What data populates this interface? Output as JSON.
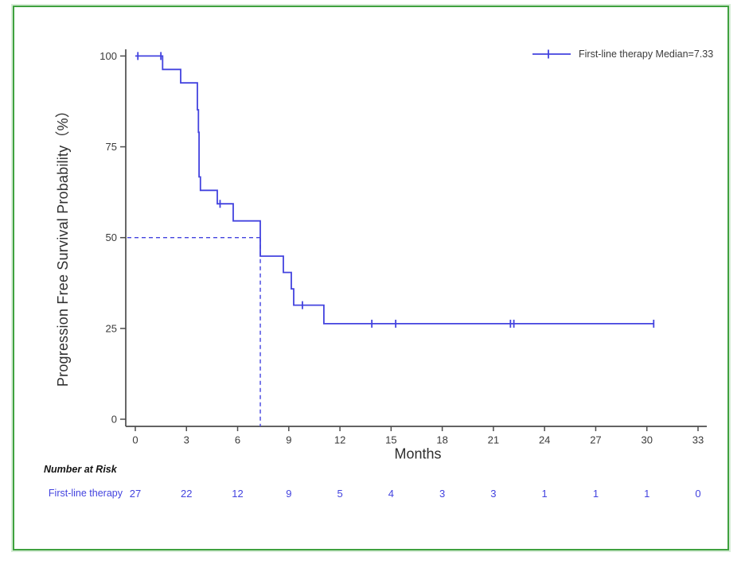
{
  "colors": {
    "curve_blue": "#4343DF",
    "axis_gray": "#4d4d4d",
    "text_dark": "#2f2f2f",
    "frame_green": "#3FA13F",
    "background": "#ffffff"
  },
  "chart_data": {
    "type": "line",
    "subtype": "kaplan-meier-step-curve",
    "title": "",
    "xlabel": "Months",
    "ylabel": "Progression Free Survival Probability（%）",
    "xlim": [
      0,
      33
    ],
    "ylim": [
      0,
      100
    ],
    "x_ticks": [
      0,
      3,
      6,
      9,
      12,
      15,
      18,
      21,
      24,
      27,
      30,
      33
    ],
    "y_ticks": [
      0,
      25,
      50,
      75,
      100
    ],
    "grid": false,
    "legend": {
      "position": "top-right",
      "label": "First-line therapy Median=7.33",
      "marker": "line-with-plus-censor-tick"
    },
    "median_reference": {
      "x": 7.33,
      "y": 50,
      "style": "dashed"
    },
    "series": [
      {
        "name": "First-line therapy",
        "color": "#4343DF",
        "steps_month_percent": [
          [
            0,
            100
          ],
          [
            1.6,
            96.3
          ],
          [
            2.66,
            92.6
          ],
          [
            3.64,
            85.2
          ],
          [
            3.7,
            79.0
          ],
          [
            3.74,
            66.7
          ],
          [
            3.82,
            63.0
          ],
          [
            4.81,
            59.3
          ],
          [
            5.74,
            54.6
          ],
          [
            7.33,
            44.9
          ],
          [
            8.68,
            40.4
          ],
          [
            9.15,
            35.9
          ],
          [
            9.29,
            31.4
          ],
          [
            11.06,
            26.3
          ],
          [
            30.4,
            26.3
          ]
        ],
        "censor_marks_month_percent": [
          [
            0.15,
            100
          ],
          [
            1.5,
            100
          ],
          [
            4.97,
            59.3
          ],
          [
            9.8,
            31.4
          ],
          [
            13.87,
            26.3
          ],
          [
            15.27,
            26.3
          ],
          [
            22.0,
            26.3
          ],
          [
            22.2,
            26.3
          ],
          [
            30.4,
            26.3
          ]
        ]
      }
    ]
  },
  "risk_table": {
    "title": "Number at Risk",
    "rows": [
      {
        "label": "First-line therapy",
        "color": "#4343DF",
        "values": [
          "27",
          "22",
          "12",
          "9",
          "5",
          "4",
          "3",
          "3",
          "1",
          "1",
          "1",
          "0"
        ]
      }
    ]
  }
}
